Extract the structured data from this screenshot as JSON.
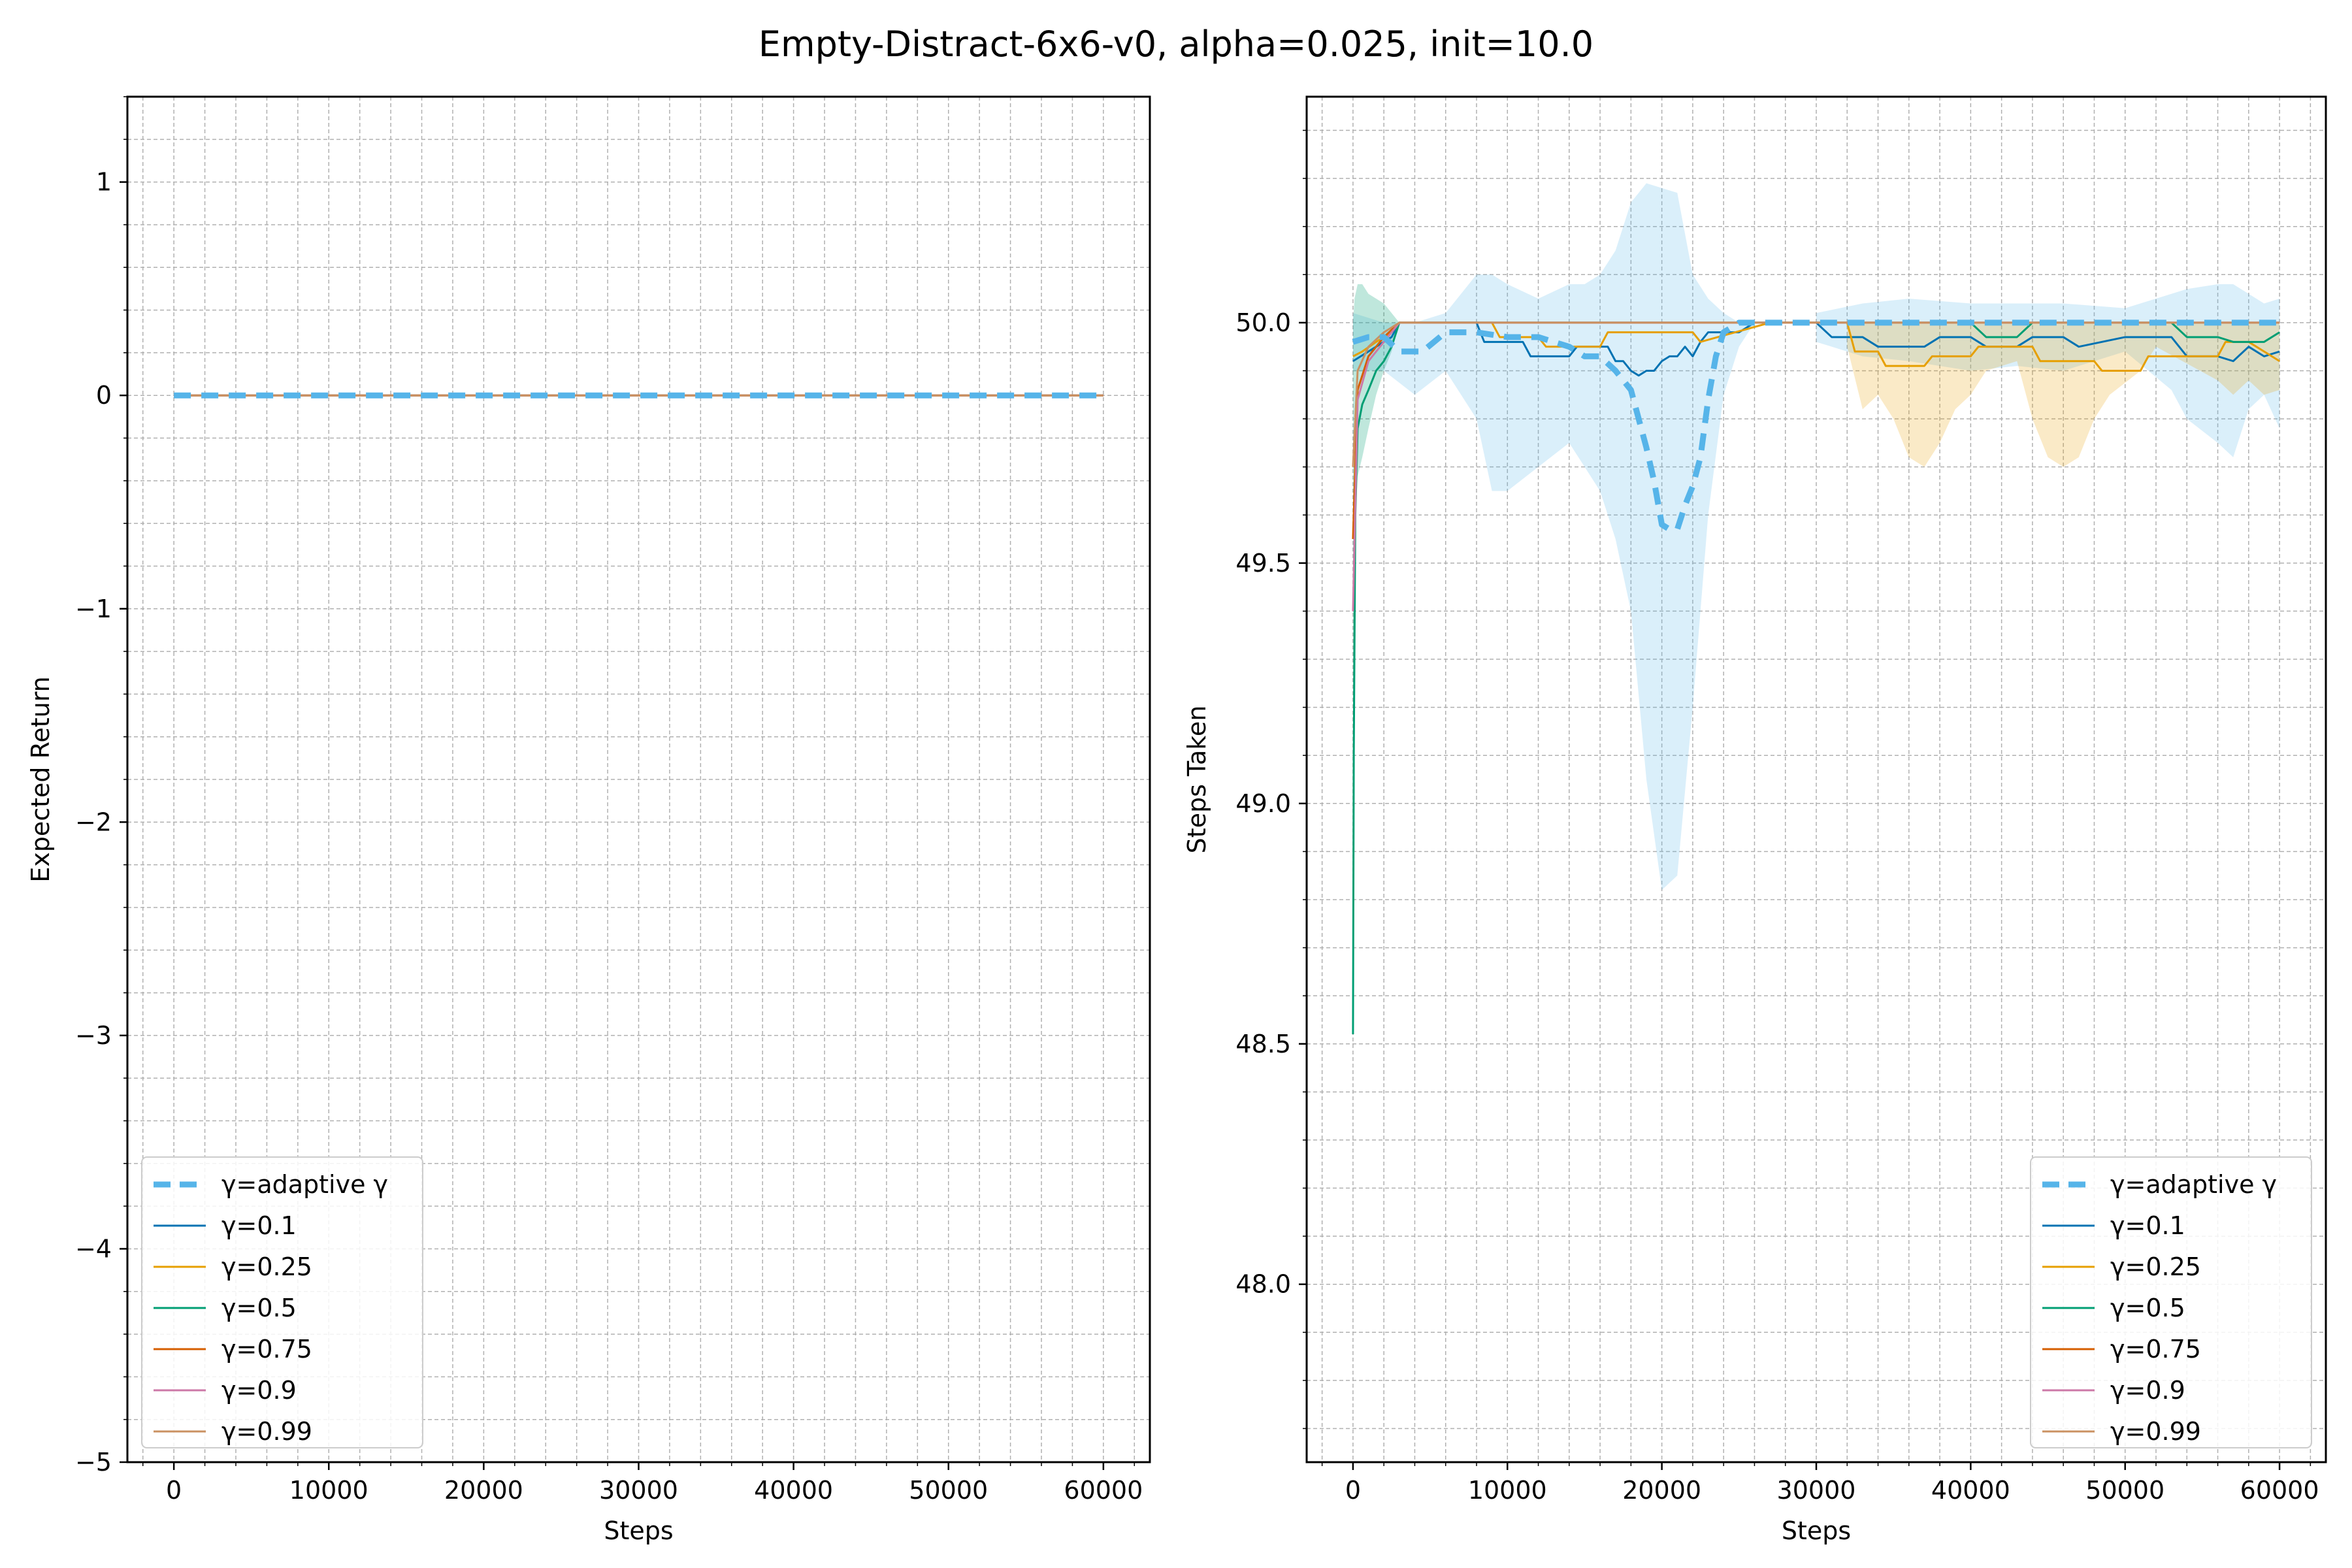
{
  "figure": {
    "title": "Empty-Distract-6x6-v0, alpha=0.025, init=10.0",
    "colors": {
      "adaptive": "#56b4e9",
      "g01": "#0072b2",
      "g025": "#e69f00",
      "g05": "#009e73",
      "g075": "#d55e00",
      "g09": "#cc79a7",
      "g099": "#ca9161",
      "grid": "#b0b0b0",
      "fill_adaptive": "#56b4e9",
      "fill_orange": "#e69f00"
    }
  },
  "legend": [
    "γ=adaptive γ",
    "γ=0.1",
    "γ=0.25",
    "γ=0.5",
    "γ=0.75",
    "γ=0.9",
    "γ=0.99"
  ],
  "chart_data": [
    {
      "type": "line",
      "xlabel": "Steps",
      "ylabel": "Expected Return",
      "xlim": [
        -3000,
        63000
      ],
      "ylim": [
        -5,
        1.4
      ],
      "xticks": [
        0,
        10000,
        20000,
        30000,
        40000,
        50000,
        60000
      ],
      "xtick_labels": [
        "0",
        "10000",
        "20000",
        "30000",
        "40000",
        "50000",
        "60000"
      ],
      "yticks": [
        1,
        0,
        -1,
        -2,
        -3,
        -4,
        -5
      ],
      "ytick_labels": [
        "1",
        "0",
        "−1",
        "−2",
        "−3",
        "−4",
        "−5"
      ],
      "grid": true,
      "legend_position": "lower left",
      "series": [
        {
          "name": "γ=adaptive γ",
          "x": [
            0,
            60000
          ],
          "y": [
            0,
            0
          ],
          "style": "dashed"
        },
        {
          "name": "γ=0.1",
          "x": [
            0,
            60000
          ],
          "y": [
            0,
            0
          ]
        },
        {
          "name": "γ=0.25",
          "x": [
            0,
            60000
          ],
          "y": [
            0,
            0
          ]
        },
        {
          "name": "γ=0.5",
          "x": [
            0,
            60000
          ],
          "y": [
            0,
            0
          ]
        },
        {
          "name": "γ=0.75",
          "x": [
            0,
            60000
          ],
          "y": [
            0,
            0
          ]
        },
        {
          "name": "γ=0.9",
          "x": [
            0,
            60000
          ],
          "y": [
            0,
            0
          ]
        },
        {
          "name": "γ=0.99",
          "x": [
            0,
            60000
          ],
          "y": [
            0,
            0
          ]
        }
      ]
    },
    {
      "type": "line",
      "xlabel": "Steps",
      "ylabel": "Steps Taken",
      "xlim": [
        -3000,
        63000
      ],
      "ylim": [
        47.63,
        50.47
      ],
      "xticks": [
        0,
        10000,
        20000,
        30000,
        40000,
        50000,
        60000
      ],
      "xtick_labels": [
        "0",
        "10000",
        "20000",
        "30000",
        "40000",
        "50000",
        "60000"
      ],
      "yticks": [
        50.0,
        49.5,
        49.0,
        48.5,
        48.0
      ],
      "ytick_labels": [
        "50.0",
        "49.5",
        "49.0",
        "48.5",
        "48.0"
      ],
      "grid": true,
      "legend_position": "lower right",
      "series": [
        {
          "name": "γ=adaptive γ",
          "style": "dashed",
          "x": [
            0,
            1000,
            2000,
            3000,
            4500,
            6000,
            8000,
            10000,
            12000,
            14000,
            15000,
            16000,
            17000,
            18000,
            18500,
            19000,
            19500,
            20000,
            20500,
            21000,
            21500,
            22000,
            22500,
            23000,
            23500,
            24000,
            25000,
            27000,
            30000,
            35000,
            40000,
            45000,
            50000,
            55000,
            60000
          ],
          "y": [
            49.96,
            49.97,
            49.97,
            49.94,
            49.94,
            49.98,
            49.98,
            49.97,
            49.97,
            49.95,
            49.93,
            49.93,
            49.9,
            49.86,
            49.8,
            49.74,
            49.67,
            49.58,
            49.57,
            49.57,
            49.62,
            49.66,
            49.72,
            49.84,
            49.93,
            49.98,
            50.0,
            50.0,
            50.0,
            50.0,
            50.0,
            50.0,
            50.0,
            50.0,
            50.0
          ]
        },
        {
          "name": "γ=0.1",
          "x": [
            0,
            500,
            1500,
            2500,
            3000,
            8000,
            8500,
            11000,
            11500,
            14000,
            14500,
            16500,
            17000,
            17500,
            18000,
            18500,
            19000,
            19500,
            20000,
            20500,
            21000,
            21500,
            22000,
            22500,
            23000,
            25000,
            26000,
            30000,
            31000,
            33000,
            34000,
            37000,
            38000,
            40000,
            41000,
            43000,
            44000,
            46000,
            47000,
            50000,
            53000,
            54000,
            56000,
            57000,
            58000,
            59000,
            60000
          ],
          "y": [
            49.92,
            49.93,
            49.95,
            49.97,
            50.0,
            50.0,
            49.96,
            49.96,
            49.93,
            49.93,
            49.95,
            49.95,
            49.92,
            49.92,
            49.9,
            49.89,
            49.9,
            49.9,
            49.92,
            49.93,
            49.93,
            49.95,
            49.93,
            49.96,
            49.98,
            49.98,
            50.0,
            50.0,
            49.97,
            49.97,
            49.95,
            49.95,
            49.97,
            49.97,
            49.95,
            49.95,
            49.97,
            49.97,
            49.95,
            49.97,
            49.97,
            49.93,
            49.93,
            49.92,
            49.95,
            49.93,
            49.94
          ]
        },
        {
          "name": "γ=0.25",
          "x": [
            0,
            600,
            1500,
            2500,
            3000,
            9000,
            9500,
            12000,
            12500,
            16000,
            16500,
            22000,
            22500,
            27000,
            32000,
            32500,
            34000,
            34500,
            37000,
            37500,
            40000,
            40500,
            44000,
            44500,
            48000,
            48500,
            51000,
            51500,
            56000,
            56500,
            58000,
            59000,
            60000
          ],
          "y": [
            49.93,
            49.94,
            49.96,
            49.98,
            50.0,
            50.0,
            49.97,
            49.97,
            49.95,
            49.95,
            49.98,
            49.98,
            49.96,
            50.0,
            50.0,
            49.94,
            49.94,
            49.91,
            49.91,
            49.93,
            49.93,
            49.95,
            49.95,
            49.92,
            49.92,
            49.9,
            49.9,
            49.93,
            49.93,
            49.96,
            49.96,
            49.94,
            49.92
          ]
        },
        {
          "name": "γ=0.5",
          "x": [
            0,
            50,
            150,
            300,
            600,
            1000,
            1500,
            2000,
            2500,
            3000,
            40000,
            41000,
            43000,
            44000,
            53000,
            54000,
            56000,
            57000,
            59000,
            60000
          ],
          "y": [
            48.52,
            49.1,
            49.6,
            49.78,
            49.83,
            49.86,
            49.9,
            49.92,
            49.95,
            50.0,
            50.0,
            49.97,
            49.97,
            50.0,
            50.0,
            49.97,
            49.97,
            49.96,
            49.96,
            49.98
          ]
        },
        {
          "name": "γ=0.75",
          "x": [
            0,
            300,
            1000,
            2000,
            3000,
            60000
          ],
          "y": [
            49.55,
            49.86,
            49.93,
            49.97,
            50.0,
            50.0
          ]
        },
        {
          "name": "γ=0.9",
          "x": [
            0,
            300,
            1000,
            2000,
            3000,
            60000
          ],
          "y": [
            49.4,
            49.84,
            49.92,
            49.96,
            50.0,
            50.0
          ]
        },
        {
          "name": "γ=0.99",
          "x": [
            0,
            300,
            1000,
            2000,
            3000,
            60000
          ],
          "y": [
            49.7,
            49.9,
            49.95,
            49.98,
            50.0,
            50.0
          ]
        }
      ],
      "bands": [
        {
          "series": "γ=adaptive γ",
          "x": [
            0,
            2000,
            4000,
            6000,
            8000,
            9000,
            10000,
            12000,
            14000,
            15000,
            16000,
            17000,
            18000,
            19000,
            20000,
            21000,
            22000,
            23000,
            24000,
            25000,
            26000
          ],
          "lower": [
            49.9,
            49.9,
            49.85,
            49.9,
            49.8,
            49.65,
            49.65,
            49.7,
            49.75,
            49.7,
            49.65,
            49.55,
            49.4,
            49.05,
            48.82,
            48.85,
            49.2,
            49.6,
            49.85,
            49.95,
            50.0
          ],
          "upper": [
            50.02,
            50.0,
            50.0,
            50.02,
            50.1,
            50.1,
            50.08,
            50.05,
            50.08,
            50.08,
            50.1,
            50.15,
            50.25,
            50.29,
            50.28,
            50.27,
            50.1,
            50.05,
            50.02,
            50.0,
            50.0
          ]
        },
        {
          "series": "γ=adaptive γ",
          "x": [
            30000,
            33000,
            36000,
            40000,
            43000,
            46000,
            50000,
            53000,
            54000,
            56000,
            57000,
            58000,
            59000,
            60000
          ],
          "lower": [
            49.96,
            49.93,
            49.92,
            49.9,
            49.91,
            49.9,
            49.94,
            49.86,
            49.8,
            49.75,
            49.72,
            49.82,
            49.85,
            49.78
          ],
          "upper": [
            50.02,
            50.04,
            50.05,
            50.04,
            50.04,
            50.04,
            50.03,
            50.06,
            50.07,
            50.08,
            50.08,
            50.06,
            50.04,
            50.05
          ]
        },
        {
          "series": "γ=0.25",
          "x": [
            32000,
            33000,
            34000,
            35000,
            36000,
            37000,
            38000,
            39000,
            40000,
            41000,
            43000,
            44000,
            45000,
            46000,
            47000,
            48000,
            49000,
            51000,
            52000,
            56000,
            57000,
            58000,
            59000,
            60000
          ],
          "lower": [
            49.95,
            49.82,
            49.85,
            49.8,
            49.72,
            49.7,
            49.75,
            49.82,
            49.85,
            49.9,
            49.92,
            49.8,
            49.72,
            49.7,
            49.72,
            49.8,
            49.85,
            49.9,
            49.95,
            49.88,
            49.85,
            49.88,
            49.85,
            49.86
          ]
        },
        {
          "series": "γ=0.5",
          "x": [
            0,
            100,
            300,
            600,
            1000,
            1500,
            2000,
            2500,
            3000
          ],
          "lower": [
            48.52,
            49.55,
            49.68,
            49.72,
            49.78,
            49.85,
            49.9,
            49.94,
            50.0
          ],
          "upper": [
            50.0,
            50.05,
            50.08,
            50.08,
            50.06,
            50.05,
            50.04,
            50.02,
            50.0
          ]
        }
      ]
    }
  ]
}
